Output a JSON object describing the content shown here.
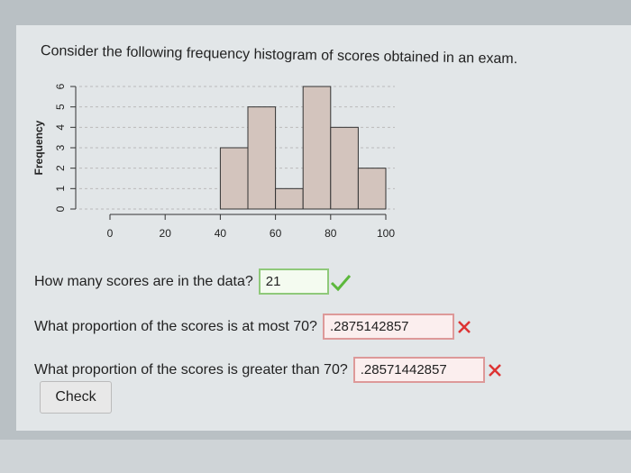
{
  "prompt": "Consider the following frequency histogram of scores obtained in an exam.",
  "chart_data": {
    "type": "histogram",
    "y_label": "Frequency",
    "bins": [
      40,
      50,
      60,
      70,
      80,
      90,
      100
    ],
    "values": [
      3,
      5,
      1,
      6,
      4,
      2
    ],
    "color": "#d3c4bd",
    "xlim": [
      0,
      100
    ],
    "xticks": [
      0,
      20,
      40,
      60,
      80,
      100
    ],
    "ylim": [
      0,
      6
    ],
    "yticks": [
      0,
      1,
      2,
      3,
      4,
      5,
      6
    ],
    "grid": true
  },
  "questions": [
    {
      "text": "How many scores are in the data?",
      "answer": "21",
      "status": "correct"
    },
    {
      "text": "What proportion of the scores is at most 70?",
      "answer": ".2875142857",
      "status": "incorrect"
    },
    {
      "text": "What proportion of the scores is greater than 70?",
      "answer": ".28571442857",
      "status": "incorrect"
    }
  ],
  "button": "Check"
}
